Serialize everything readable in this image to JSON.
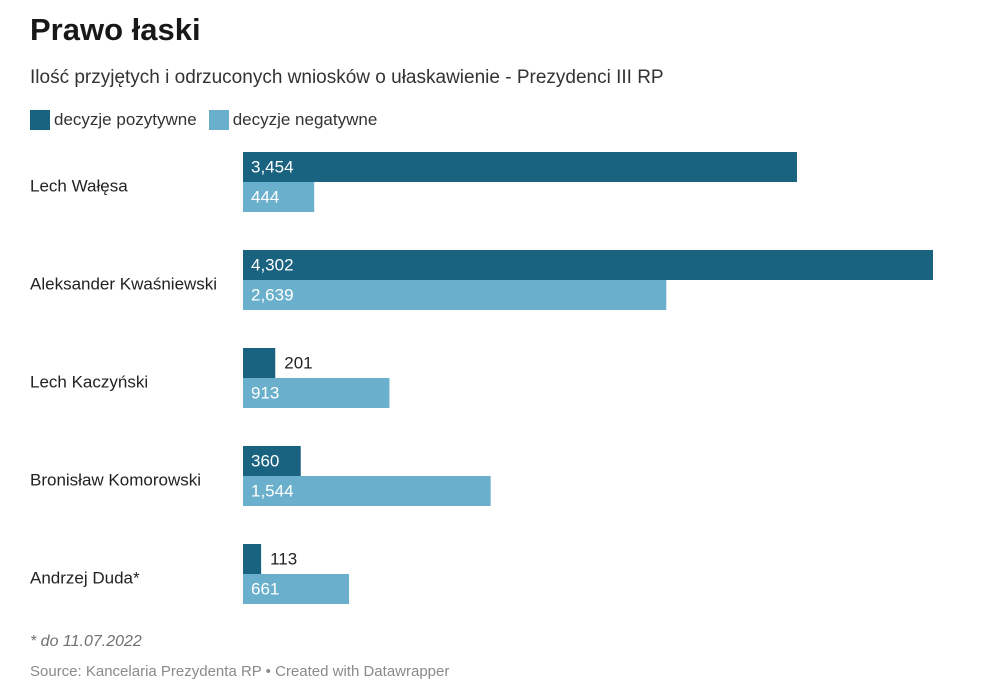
{
  "header": {
    "title": "Prawo łaski",
    "subtitle": "Ilość przyjętych i odrzuconych wniosków o ułaskawienie - Prezydenci III RP"
  },
  "footer": {
    "note": "* do 11.07.2022",
    "source": "Source: Kancelaria Prezydenta RP • Created with Datawrapper"
  },
  "colors": {
    "positive": "#1a6380",
    "negative": "#6ab0cc"
  },
  "chart_data": {
    "type": "bar",
    "orientation": "horizontal",
    "categories": [
      "Lech Wałęsa",
      "Aleksander Kwaśniewski",
      "Lech Kaczyński",
      "Bronisław Komorowski",
      "Andrzej Duda*"
    ],
    "series": [
      {
        "name": "decyzje pozytywne",
        "values": [
          3454,
          4302,
          201,
          360,
          113
        ],
        "labels": [
          "3,454",
          "4,302",
          "201",
          "360",
          "113"
        ]
      },
      {
        "name": "decyzje negatywne",
        "values": [
          444,
          2639,
          913,
          1544,
          661
        ],
        "labels": [
          "444",
          "2,639",
          "913",
          "1,544",
          "661"
        ]
      }
    ],
    "xlim": [
      0,
      4302
    ],
    "grid": false,
    "legend_position": "top-left"
  }
}
